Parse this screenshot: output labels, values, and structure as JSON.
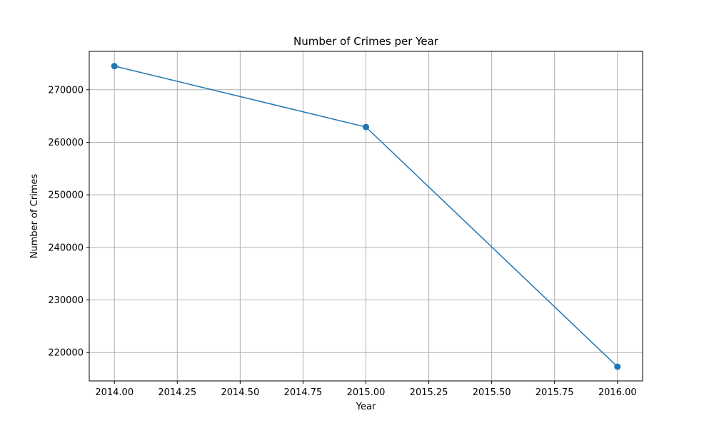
{
  "chart_data": {
    "type": "line",
    "title": "Number of Crimes per Year",
    "xlabel": "Year",
    "ylabel": "Number of Crimes",
    "x": [
      2014.0,
      2015.0,
      2016.0
    ],
    "series": [
      {
        "values": [
          274500,
          262900,
          217300
        ],
        "color": "#1f77b4",
        "marker": "circle"
      }
    ],
    "xlim": [
      2013.9,
      2016.1
    ],
    "ylim": [
      214600,
      277300
    ],
    "xticks": [
      2014.0,
      2014.25,
      2014.5,
      2014.75,
      2015.0,
      2015.25,
      2015.5,
      2015.75,
      2016.0
    ],
    "xtick_labels": [
      "2014.00",
      "2014.25",
      "2014.50",
      "2014.75",
      "2015.00",
      "2015.25",
      "2015.50",
      "2015.75",
      "2016.00"
    ],
    "yticks": [
      220000,
      230000,
      240000,
      250000,
      260000,
      270000
    ],
    "ytick_labels": [
      "220000",
      "230000",
      "240000",
      "250000",
      "260000",
      "270000"
    ],
    "grid": true,
    "colors": {
      "grid": "#b0b0b0",
      "axes": "#000000"
    }
  }
}
